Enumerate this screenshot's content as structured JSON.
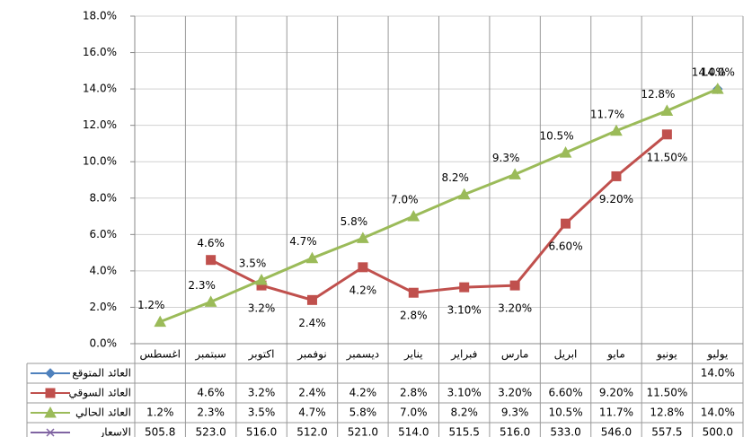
{
  "chart_data": {
    "type": "line",
    "categories": [
      "اغسطس",
      "سبتمبر",
      "اكتوبر",
      "نوفمبر",
      "ديسمبر",
      "يناير",
      "فبراير",
      "مارس",
      "ابريل",
      "مايو",
      "يونيو",
      "يوليو"
    ],
    "series": [
      {
        "name": "العائد المتوقع",
        "color": "#4f81bd",
        "marker": "diamond",
        "values": [
          null,
          null,
          null,
          null,
          null,
          null,
          null,
          null,
          null,
          null,
          null,
          14.0
        ],
        "value_labels": [
          null,
          null,
          null,
          null,
          null,
          null,
          null,
          null,
          null,
          null,
          null,
          "14.0%"
        ]
      },
      {
        "name": "العائد السوقي",
        "color": "#c0504d",
        "marker": "square",
        "values": [
          null,
          4.6,
          3.2,
          2.4,
          4.2,
          2.8,
          3.1,
          3.2,
          6.6,
          9.2,
          11.5,
          null
        ],
        "value_labels": [
          null,
          "4.6%",
          "3.2%",
          "2.4%",
          "4.2%",
          "2.8%",
          "3.10%",
          "3.20%",
          "6.60%",
          "9.20%",
          "11.50%",
          null
        ]
      },
      {
        "name": "العائد الحالي",
        "color": "#9bbb59",
        "marker": "triangle",
        "values": [
          1.2,
          2.3,
          3.5,
          4.7,
          5.8,
          7.0,
          8.2,
          9.3,
          10.5,
          11.7,
          12.8,
          14.0
        ],
        "value_labels": [
          "1.2%",
          "2.3%",
          "3.5%",
          "4.7%",
          "5.8%",
          "7.0%",
          "8.2%",
          "9.3%",
          "10.5%",
          "11.7%",
          "12.8%",
          "14.0%"
        ]
      },
      {
        "name": "الاسعار",
        "color": "#8064a2",
        "marker": "x",
        "plot": false,
        "values": [
          505.8,
          523.0,
          516.0,
          512.0,
          521.0,
          514.0,
          515.5,
          516.0,
          533.0,
          546.0,
          557.5,
          500.0
        ],
        "value_labels": [
          "505.8",
          "523.0",
          "516.0",
          "512.0",
          "521.0",
          "514.0",
          "515.5",
          "516.0",
          "533.0",
          "546.0",
          "557.5",
          "500.0"
        ]
      }
    ],
    "ylim": [
      0,
      18
    ],
    "yticks": [
      {
        "value": 0,
        "label": "0.0%"
      },
      {
        "value": 2,
        "label": "2.0%"
      },
      {
        "value": 4,
        "label": "4.0%"
      },
      {
        "value": 6,
        "label": "6.0%"
      },
      {
        "value": 8,
        "label": "8.0%"
      },
      {
        "value": 10,
        "label": "10.0%"
      },
      {
        "value": 12,
        "label": "12.0%"
      },
      {
        "value": 14,
        "label": "14.0%"
      },
      {
        "value": 16,
        "label": "16.0%"
      },
      {
        "value": 18,
        "label": "18.0%"
      }
    ],
    "grid": true
  }
}
